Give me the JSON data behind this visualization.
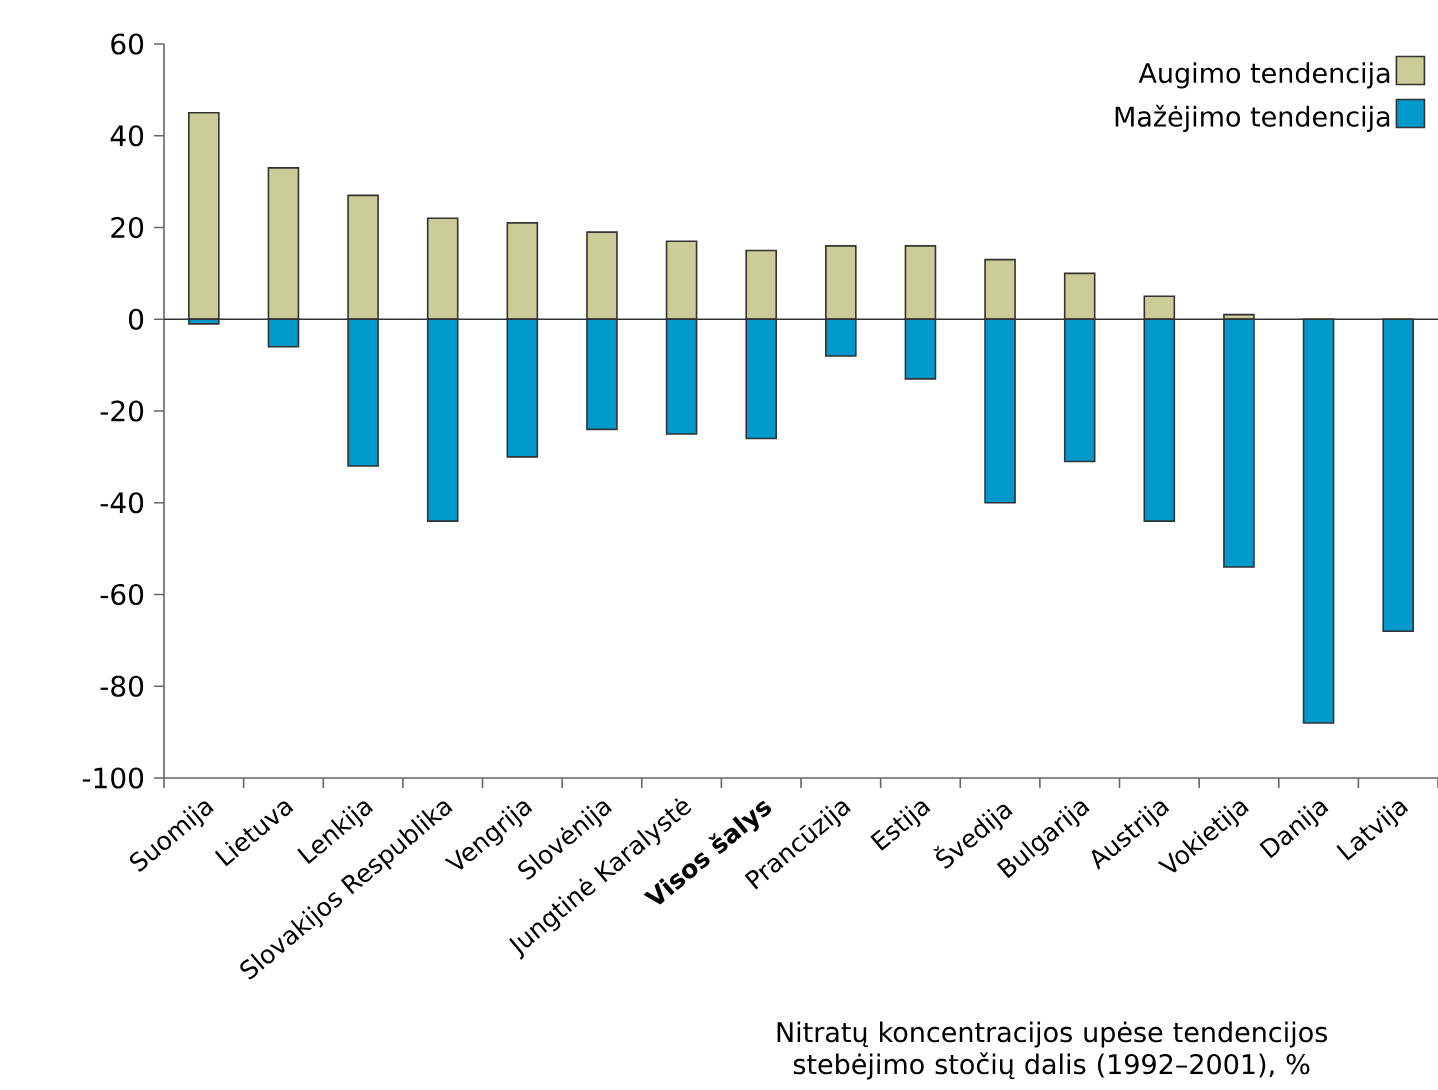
{
  "chart_data": {
    "type": "bar",
    "stacked": true,
    "categories": [
      "Suomija",
      "Lietuva",
      "Lenkija",
      "Slovakijos Respublika",
      "Vengrija",
      "Slovėnija",
      "Jungtinė Karalystė",
      "**Visos šalys**",
      "Prancūzija",
      "Estija",
      "Švedija",
      "Bulgarija",
      "Austrija",
      "Vokietija",
      "Danija",
      "Latvija"
    ],
    "series": [
      {
        "name": "Augimo tendencija",
        "color": "#cccc99",
        "values": [
          45,
          33,
          27,
          22,
          21,
          19,
          17,
          15,
          16,
          16,
          13,
          10,
          5,
          1,
          0,
          0
        ]
      },
      {
        "name": "Mažėjimo tendencija",
        "color": "#0099cc",
        "values": [
          -1,
          -6,
          -32,
          -44,
          -30,
          -24,
          -25,
          -26,
          -8,
          -13,
          -40,
          -31,
          -44,
          -54,
          -88,
          -68
        ]
      }
    ],
    "ylim": [
      -100,
      60
    ],
    "yticks": [
      -100,
      -80,
      -60,
      -40,
      -20,
      0,
      20,
      40,
      60
    ],
    "legend": "top right",
    "grid": false,
    "ref_lines": [
      {
        "axis": "y",
        "value": 0,
        "color": "#333333"
      }
    ],
    "annotations": [
      "Nitratų koncentracijos upėse tendencijos stebėjimo stočių dalis (1992–2001), %"
    ]
  }
}
